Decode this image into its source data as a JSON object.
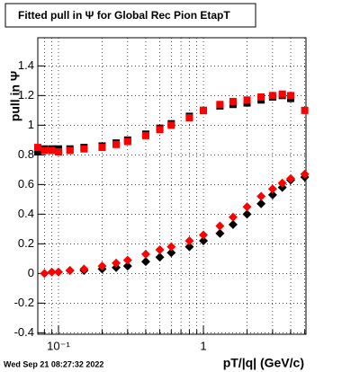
{
  "chart_data": {
    "type": "scatter",
    "title": "Fitted pull in  Ψ  for Global Rec Pion EtapT",
    "x_label": "pT/|q| (GeV/c)",
    "y_label": "pull in  Ψ",
    "timestamp": "Wed Sep 21 08:27:32 2022",
    "x": [
      0.072,
      0.08,
      0.09,
      0.1,
      0.12,
      0.15,
      0.2,
      0.25,
      0.3,
      0.4,
      0.5,
      0.6,
      0.8,
      1.0,
      1.3,
      1.6,
      2.0,
      2.5,
      3.0,
      3.5,
      4.0,
      5.0
    ],
    "series": [
      {
        "color": "#000000",
        "marker": "square",
        "values": [
          0.82,
          0.84,
          0.84,
          0.84,
          0.84,
          0.85,
          0.86,
          0.88,
          0.9,
          0.94,
          0.98,
          1.01,
          1.06,
          1.1,
          1.13,
          1.14,
          1.15,
          1.17,
          1.19,
          1.2,
          1.18,
          null
        ]
      },
      {
        "color": "#ff0000",
        "marker": "square",
        "values": [
          0.85,
          0.83,
          0.83,
          0.82,
          0.83,
          0.84,
          0.85,
          0.87,
          0.89,
          0.93,
          0.97,
          1.0,
          1.05,
          1.1,
          1.14,
          1.16,
          1.17,
          1.19,
          1.2,
          1.21,
          1.2,
          1.1
        ]
      },
      {
        "color": "#000000",
        "marker": "diamond",
        "values": [
          null,
          null,
          null,
          null,
          0.02,
          0.02,
          0.03,
          0.04,
          0.05,
          0.08,
          0.11,
          0.14,
          0.18,
          0.22,
          0.27,
          0.33,
          0.4,
          0.47,
          0.53,
          0.58,
          0.63,
          0.65
        ]
      },
      {
        "color": "#ff0000",
        "marker": "diamond",
        "values": [
          null,
          0.0,
          0.01,
          0.01,
          0.02,
          0.03,
          0.05,
          0.07,
          0.09,
          0.13,
          0.16,
          0.18,
          0.22,
          0.26,
          0.32,
          0.38,
          0.45,
          0.52,
          0.57,
          0.61,
          0.64,
          0.67
        ]
      }
    ],
    "xlog": true,
    "xlim": [
      0.072,
      5.1
    ],
    "xticks": [
      {
        "value": 0.1,
        "label": "10⁻¹"
      },
      1
    ],
    "xminor": [
      0.08,
      0.09,
      0.2,
      0.3,
      0.4,
      0.5,
      0.6,
      0.7,
      0.8,
      0.9,
      2,
      3,
      4,
      5
    ],
    "ylim": [
      -0.41,
      1.59
    ],
    "yticks": [
      -0.4,
      -0.2,
      0,
      0.2,
      0.4,
      0.6,
      0.8,
      1,
      1.2,
      1.4
    ],
    "grid": true
  }
}
